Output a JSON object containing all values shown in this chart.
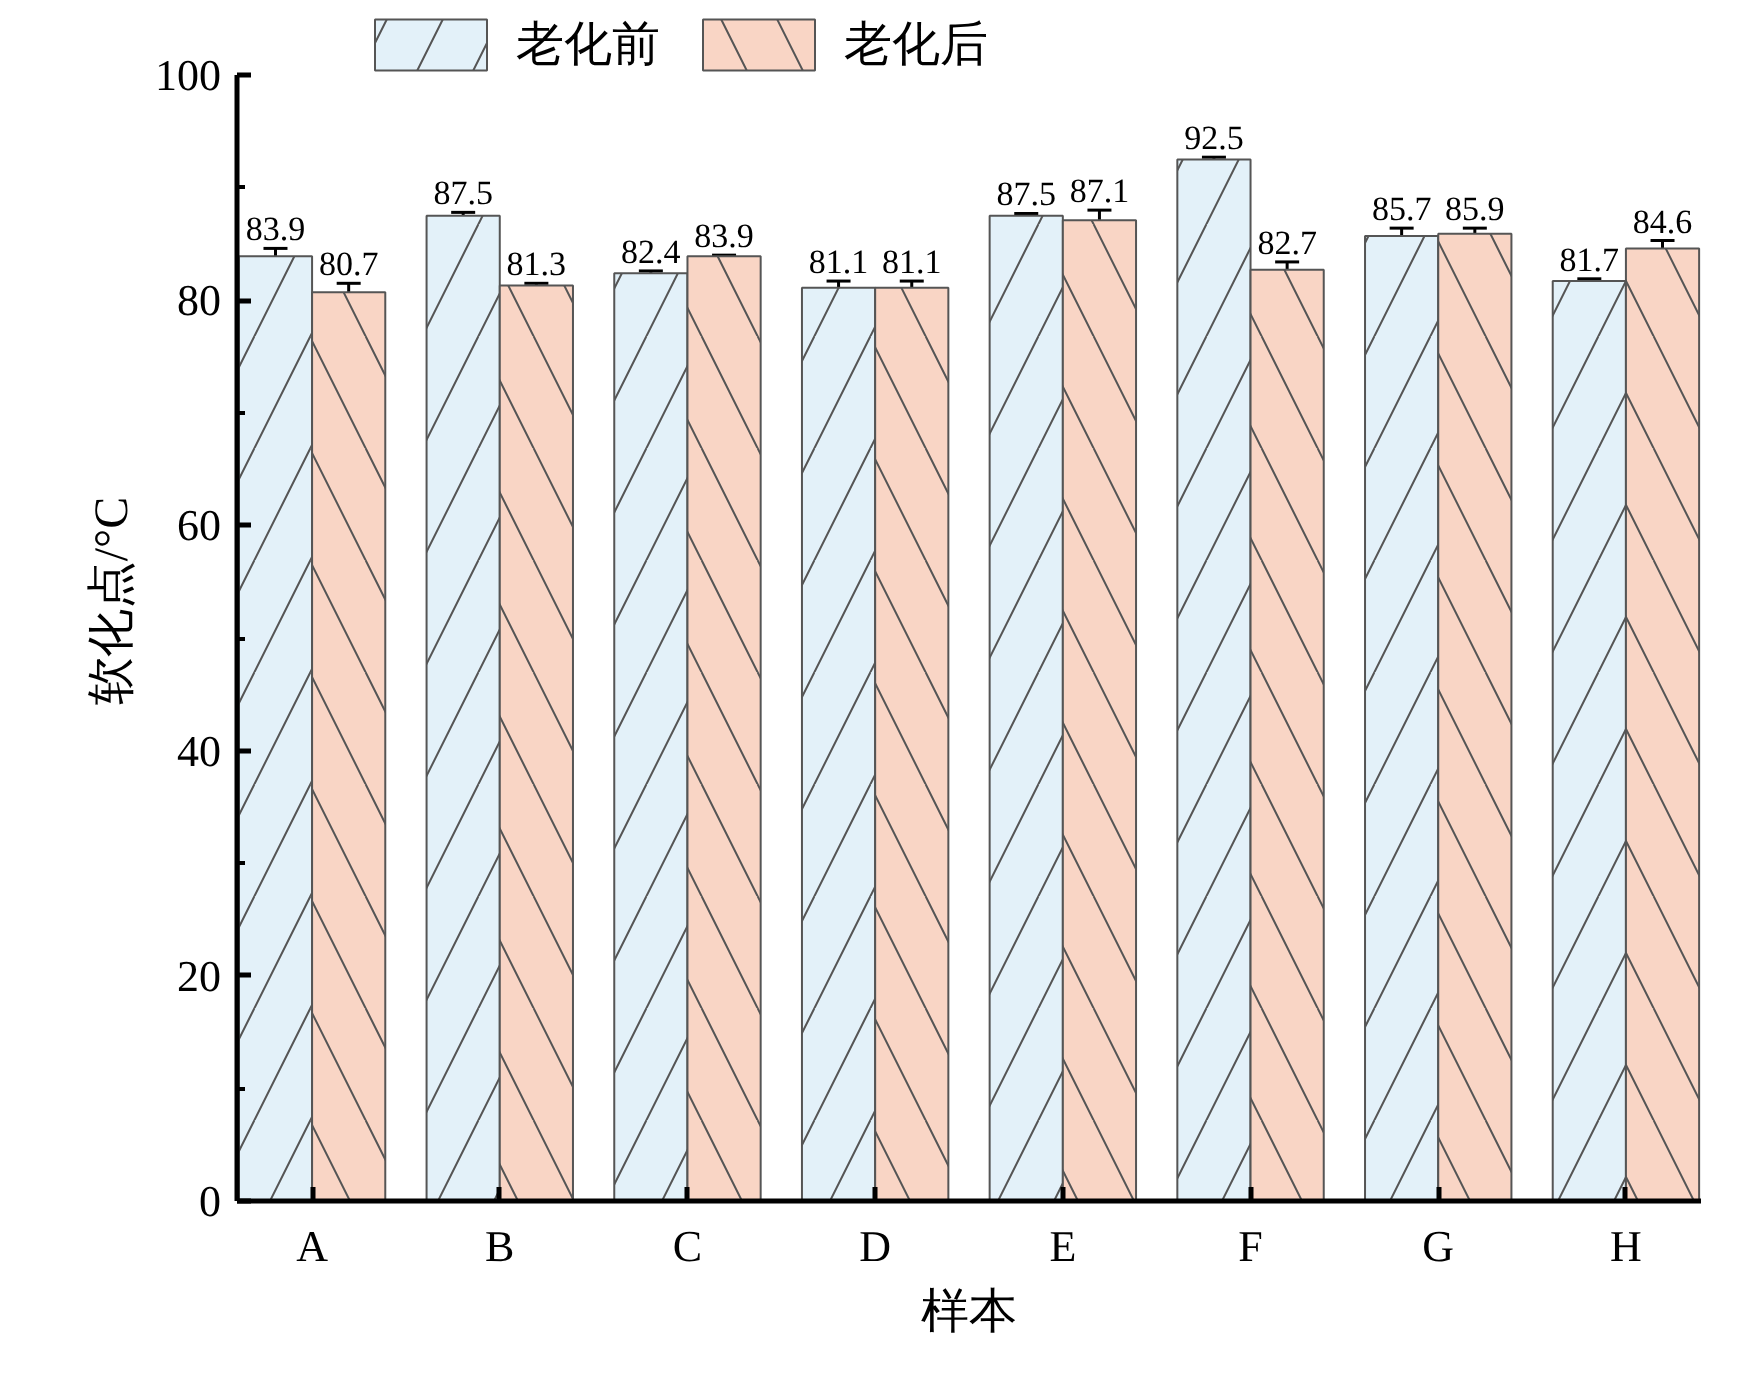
{
  "chart_data": {
    "type": "bar",
    "xlabel": "样本",
    "ylabel": "软化点/°C",
    "categories": [
      "A",
      "B",
      "C",
      "D",
      "E",
      "F",
      "G",
      "H"
    ],
    "series": [
      {
        "name": "老化前",
        "color": "#e3f1f9",
        "values": [
          83.9,
          87.5,
          82.4,
          81.1,
          87.5,
          92.5,
          85.7,
          81.7
        ],
        "errors": [
          0.7,
          0.3,
          0.2,
          0.6,
          0.2,
          0.2,
          0.7,
          0.2
        ]
      },
      {
        "name": "老化后",
        "color": "#f9d5c5",
        "values": [
          80.7,
          81.3,
          83.9,
          81.1,
          87.1,
          82.7,
          85.9,
          84.6
        ],
        "errors": [
          0.8,
          0.2,
          0.1,
          0.6,
          0.9,
          0.7,
          0.5,
          0.7
        ]
      }
    ],
    "ylim": [
      0,
      100
    ],
    "yticks": [
      0,
      20,
      40,
      60,
      80,
      100
    ],
    "grid": false,
    "legend": "top",
    "data_labels": true
  }
}
